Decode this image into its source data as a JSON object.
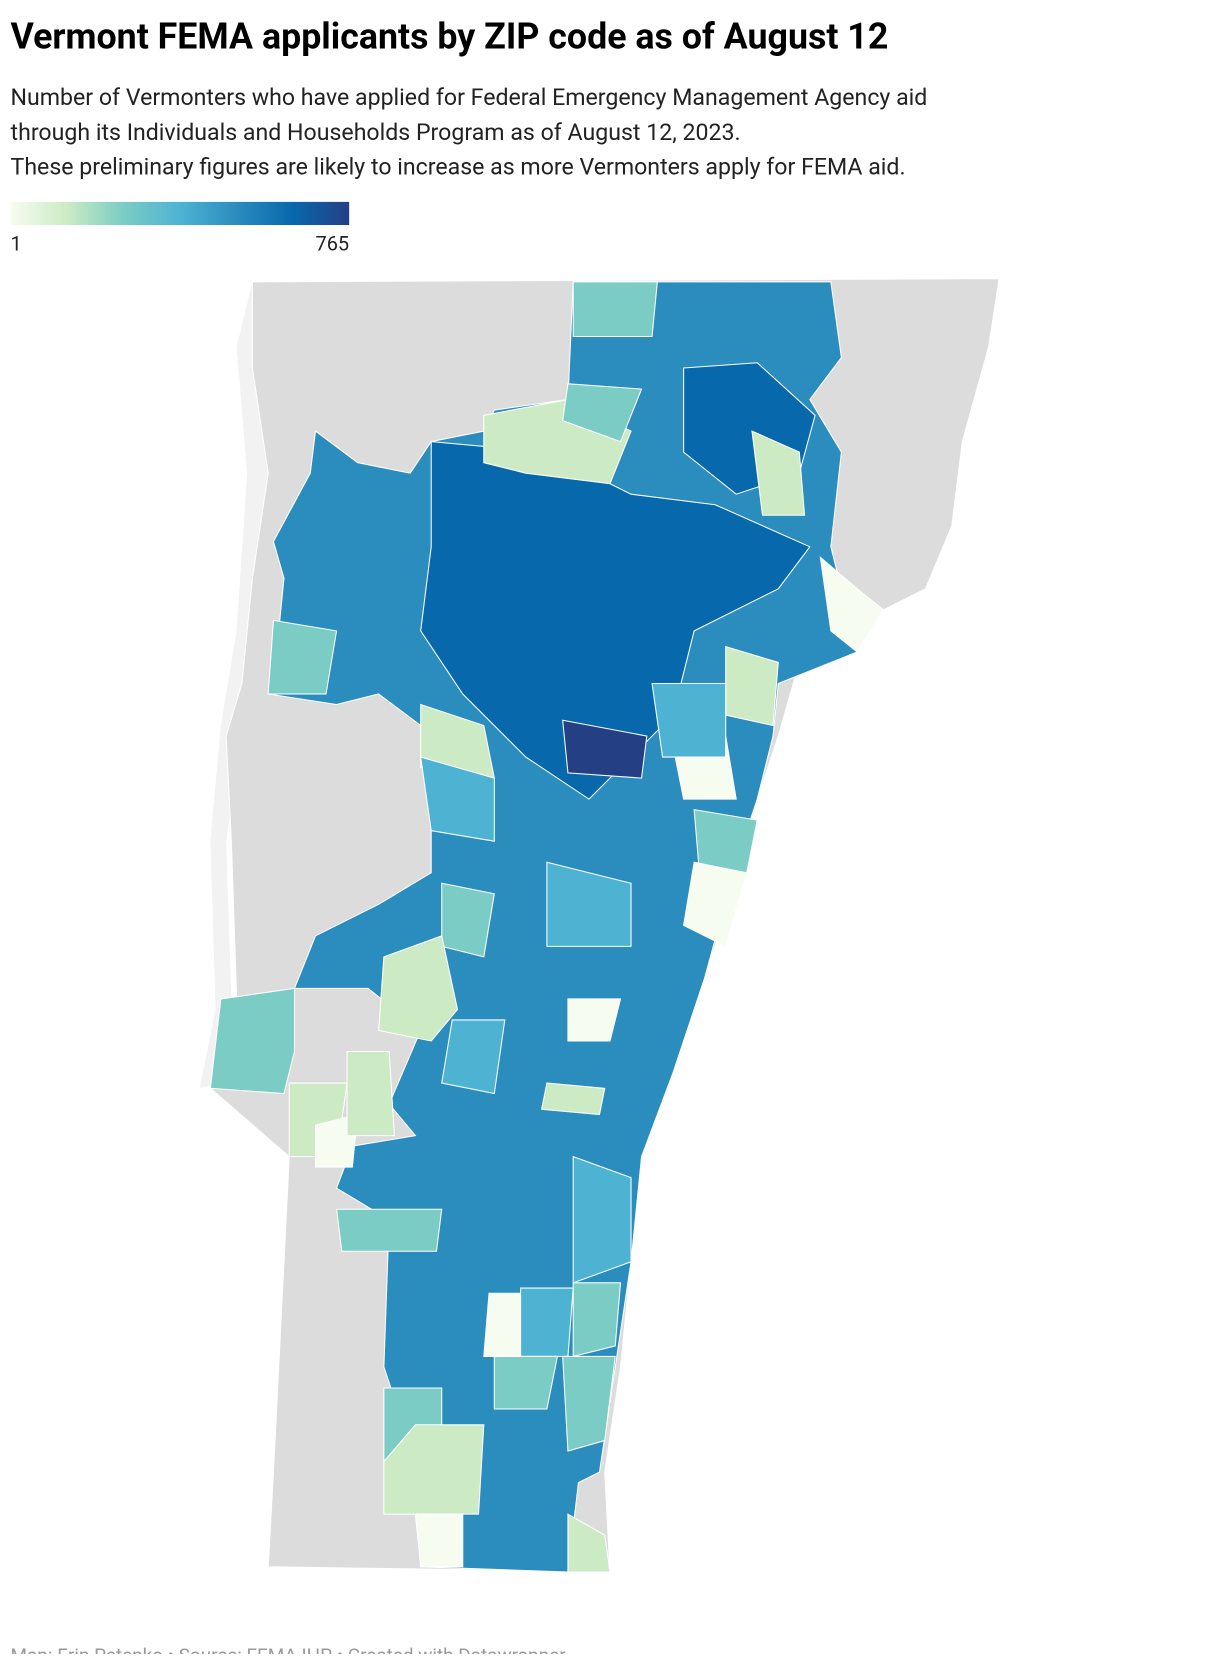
{
  "title": "Vermont FEMA applicants by ZIP code as of August 12",
  "subtitle": [
    "Number of Vermonters who have applied for Federal Emergency Management Agency aid",
    "through its Individuals and Households Program as of August 12, 2023.",
    "These preliminary figures are likely to increase as more Vermonters apply for FEMA aid."
  ],
  "legend": {
    "min": 1,
    "max": 765,
    "colors": [
      "#f7fcf0",
      "#ccebc5",
      "#7bccc4",
      "#4eb3d3",
      "#2b8cbe",
      "#0868ac",
      "#253f85"
    ]
  },
  "footer": "Map: Erin Petenko • Source: FEMA IHP • Created with Datawrapper"
}
